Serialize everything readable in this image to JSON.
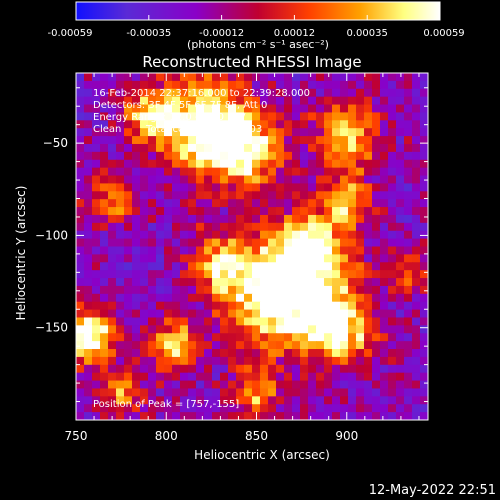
{
  "chart_data": {
    "type": "heatmap",
    "title": "Reconstructed RHESSI Image",
    "xlabel": "Heliocentric X (arcsec)",
    "ylabel": "Heliocentric Y (arcsec)",
    "xlim": [
      750,
      945
    ],
    "ylim": [
      -200,
      -12
    ],
    "x_ticks": [
      750,
      800,
      850,
      900
    ],
    "y_ticks": [
      -50,
      -100,
      -150
    ],
    "colorbar": {
      "range": [
        -0.00059,
        0.00059
      ],
      "ticks": [
        "-0.00059",
        "-0.00035",
        "-0.00012",
        "0.00012",
        "0.00035",
        "0.00059"
      ],
      "unit_label": "(photons cm⁻² s⁻¹ asec⁻²)",
      "colors": [
        "#1010ff",
        "#5a2ad6",
        "#8a00c8",
        "#c00030",
        "#ff4000",
        "#ffa000",
        "#ffff80",
        "#ffffff"
      ]
    },
    "annotations": {
      "time_range": "16-Feb-2014 22:37:16.000 to 22:39:28.000",
      "detectors": "Detectors: 3F 4F 5F 6F 7F 8F, Att 0",
      "energy": "Energy Range: 12.0 - 25.0 keV",
      "method": "Clean",
      "counts": "Total counts: 3.79E+03",
      "peak": "Position of Peak = [757,-155]"
    },
    "peak_position": [
      757,
      -155
    ],
    "grid": false,
    "legend": "none"
  },
  "footer": {
    "timestamp": "12-May-2022 22:51"
  }
}
